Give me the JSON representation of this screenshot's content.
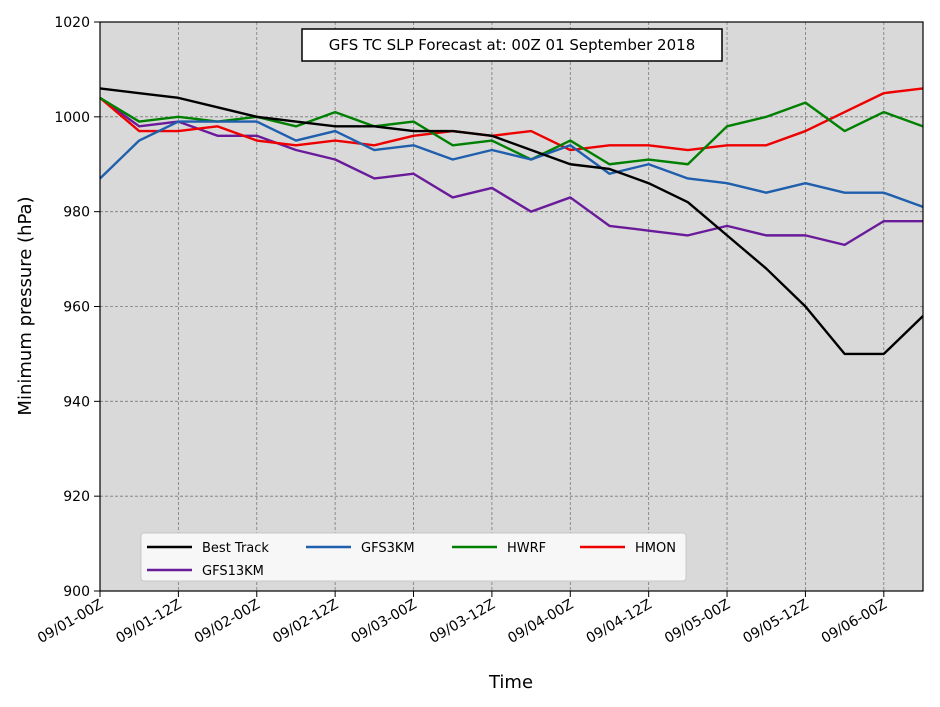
{
  "chart_data": {
    "type": "line",
    "title": "GFS TC SLP Forecast at: 00Z 01 September 2018",
    "xlabel": "Time",
    "ylabel": "Minimum pressure (hPa)",
    "ylim": [
      900,
      1020
    ],
    "yticks": [
      "900",
      "920",
      "940",
      "960",
      "980",
      "1000",
      "1020"
    ],
    "xlim": [
      0,
      21
    ],
    "xticks": [
      {
        "x": 0,
        "label": "09/01-00Z"
      },
      {
        "x": 2,
        "label": "09/01-12Z"
      },
      {
        "x": 4,
        "label": "09/02-00Z"
      },
      {
        "x": 6,
        "label": "09/02-12Z"
      },
      {
        "x": 8,
        "label": "09/03-00Z"
      },
      {
        "x": 10,
        "label": "09/03-12Z"
      },
      {
        "x": 12,
        "label": "09/04-00Z"
      },
      {
        "x": 14,
        "label": "09/04-12Z"
      },
      {
        "x": 16,
        "label": "09/05-00Z"
      },
      {
        "x": 18,
        "label": "09/05-12Z"
      },
      {
        "x": 20,
        "label": "09/06-00Z"
      }
    ],
    "grid": true,
    "legend_position": "bottom-left",
    "background": "#d9d9d9",
    "series": [
      {
        "name": "Best Track",
        "color": "#000000",
        "values": [
          1006,
          1005,
          1004,
          1002,
          1000,
          999,
          998,
          998,
          997,
          997,
          996,
          993,
          990,
          989,
          986,
          982,
          975,
          968,
          960,
          950,
          950,
          958
        ]
      },
      {
        "name": "GFS3KM",
        "color": "#1f5fad",
        "values": [
          987,
          995,
          999,
          999,
          999,
          995,
          997,
          993,
          994,
          991,
          993,
          991,
          994,
          988,
          990,
          987,
          986,
          984,
          986,
          984,
          984,
          981
        ]
      },
      {
        "name": "HWRF",
        "color": "#008000",
        "values": [
          1004,
          999,
          1000,
          999,
          1000,
          998,
          1001,
          998,
          999,
          994,
          995,
          991,
          995,
          990,
          991,
          990,
          998,
          1000,
          1003,
          997,
          1001,
          998
        ]
      },
      {
        "name": "HMON",
        "color": "#ee0000",
        "values": [
          1004,
          997,
          997,
          998,
          995,
          994,
          995,
          994,
          996,
          997,
          996,
          997,
          993,
          994,
          994,
          993,
          994,
          994,
          997,
          1001,
          1005,
          1006
        ]
      },
      {
        "name": "GFS13KM",
        "color": "#6a1b9a",
        "values": [
          1004,
          998,
          999,
          996,
          996,
          993,
          991,
          987,
          988,
          983,
          985,
          980,
          983,
          977,
          976,
          975,
          977,
          975,
          975,
          973,
          978,
          978
        ]
      }
    ]
  }
}
